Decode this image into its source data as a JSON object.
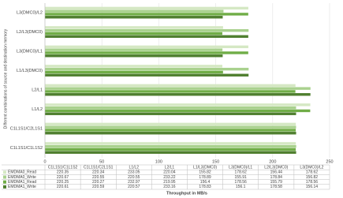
{
  "chart_data": {
    "type": "bar",
    "orientation": "horizontal",
    "y_label": "Different  combinations of source and destination memory",
    "x_label": "Throughput in MB/s",
    "categories": [
      "C1L1S1/C1L1S2",
      "C1L1S1/C2L1S1",
      "L1/L2",
      "L2/L1",
      "L1/L3(DMC0)",
      "L3(DMC0)/L1",
      "L2/L3(DMC0)",
      "L3(DMC0)/L2"
    ],
    "series": [
      {
        "name": "EMDMA0_Read",
        "color": "#d5e8c4",
        "values": [
          220.35,
          220.34,
          233.05,
          220.04,
          155.82,
          178.62,
          156.44,
          178.62
        ]
      },
      {
        "name": "EMDMA0_Write",
        "color": "#a9d18e",
        "values": [
          220.67,
          220.55,
          220.55,
          233.22,
          178.89,
          155.91,
          178.84,
          156.82
        ]
      },
      {
        "name": "EMDMA1_Read",
        "color": "#70ad47",
        "values": [
          220.25,
          220.27,
          232.97,
          219.95,
          156.4,
          178.56,
          155.79,
          178.56
        ]
      },
      {
        "name": "EMDMA1_Write",
        "color": "#4f7f2f",
        "values": [
          220.61,
          220.59,
          220.57,
          233.16,
          178.83,
          156.1,
          178.58,
          156.14
        ]
      }
    ],
    "xlim": [
      0,
      250
    ],
    "xticks": [
      0,
      50,
      100,
      150,
      200,
      250
    ],
    "grid": true
  }
}
